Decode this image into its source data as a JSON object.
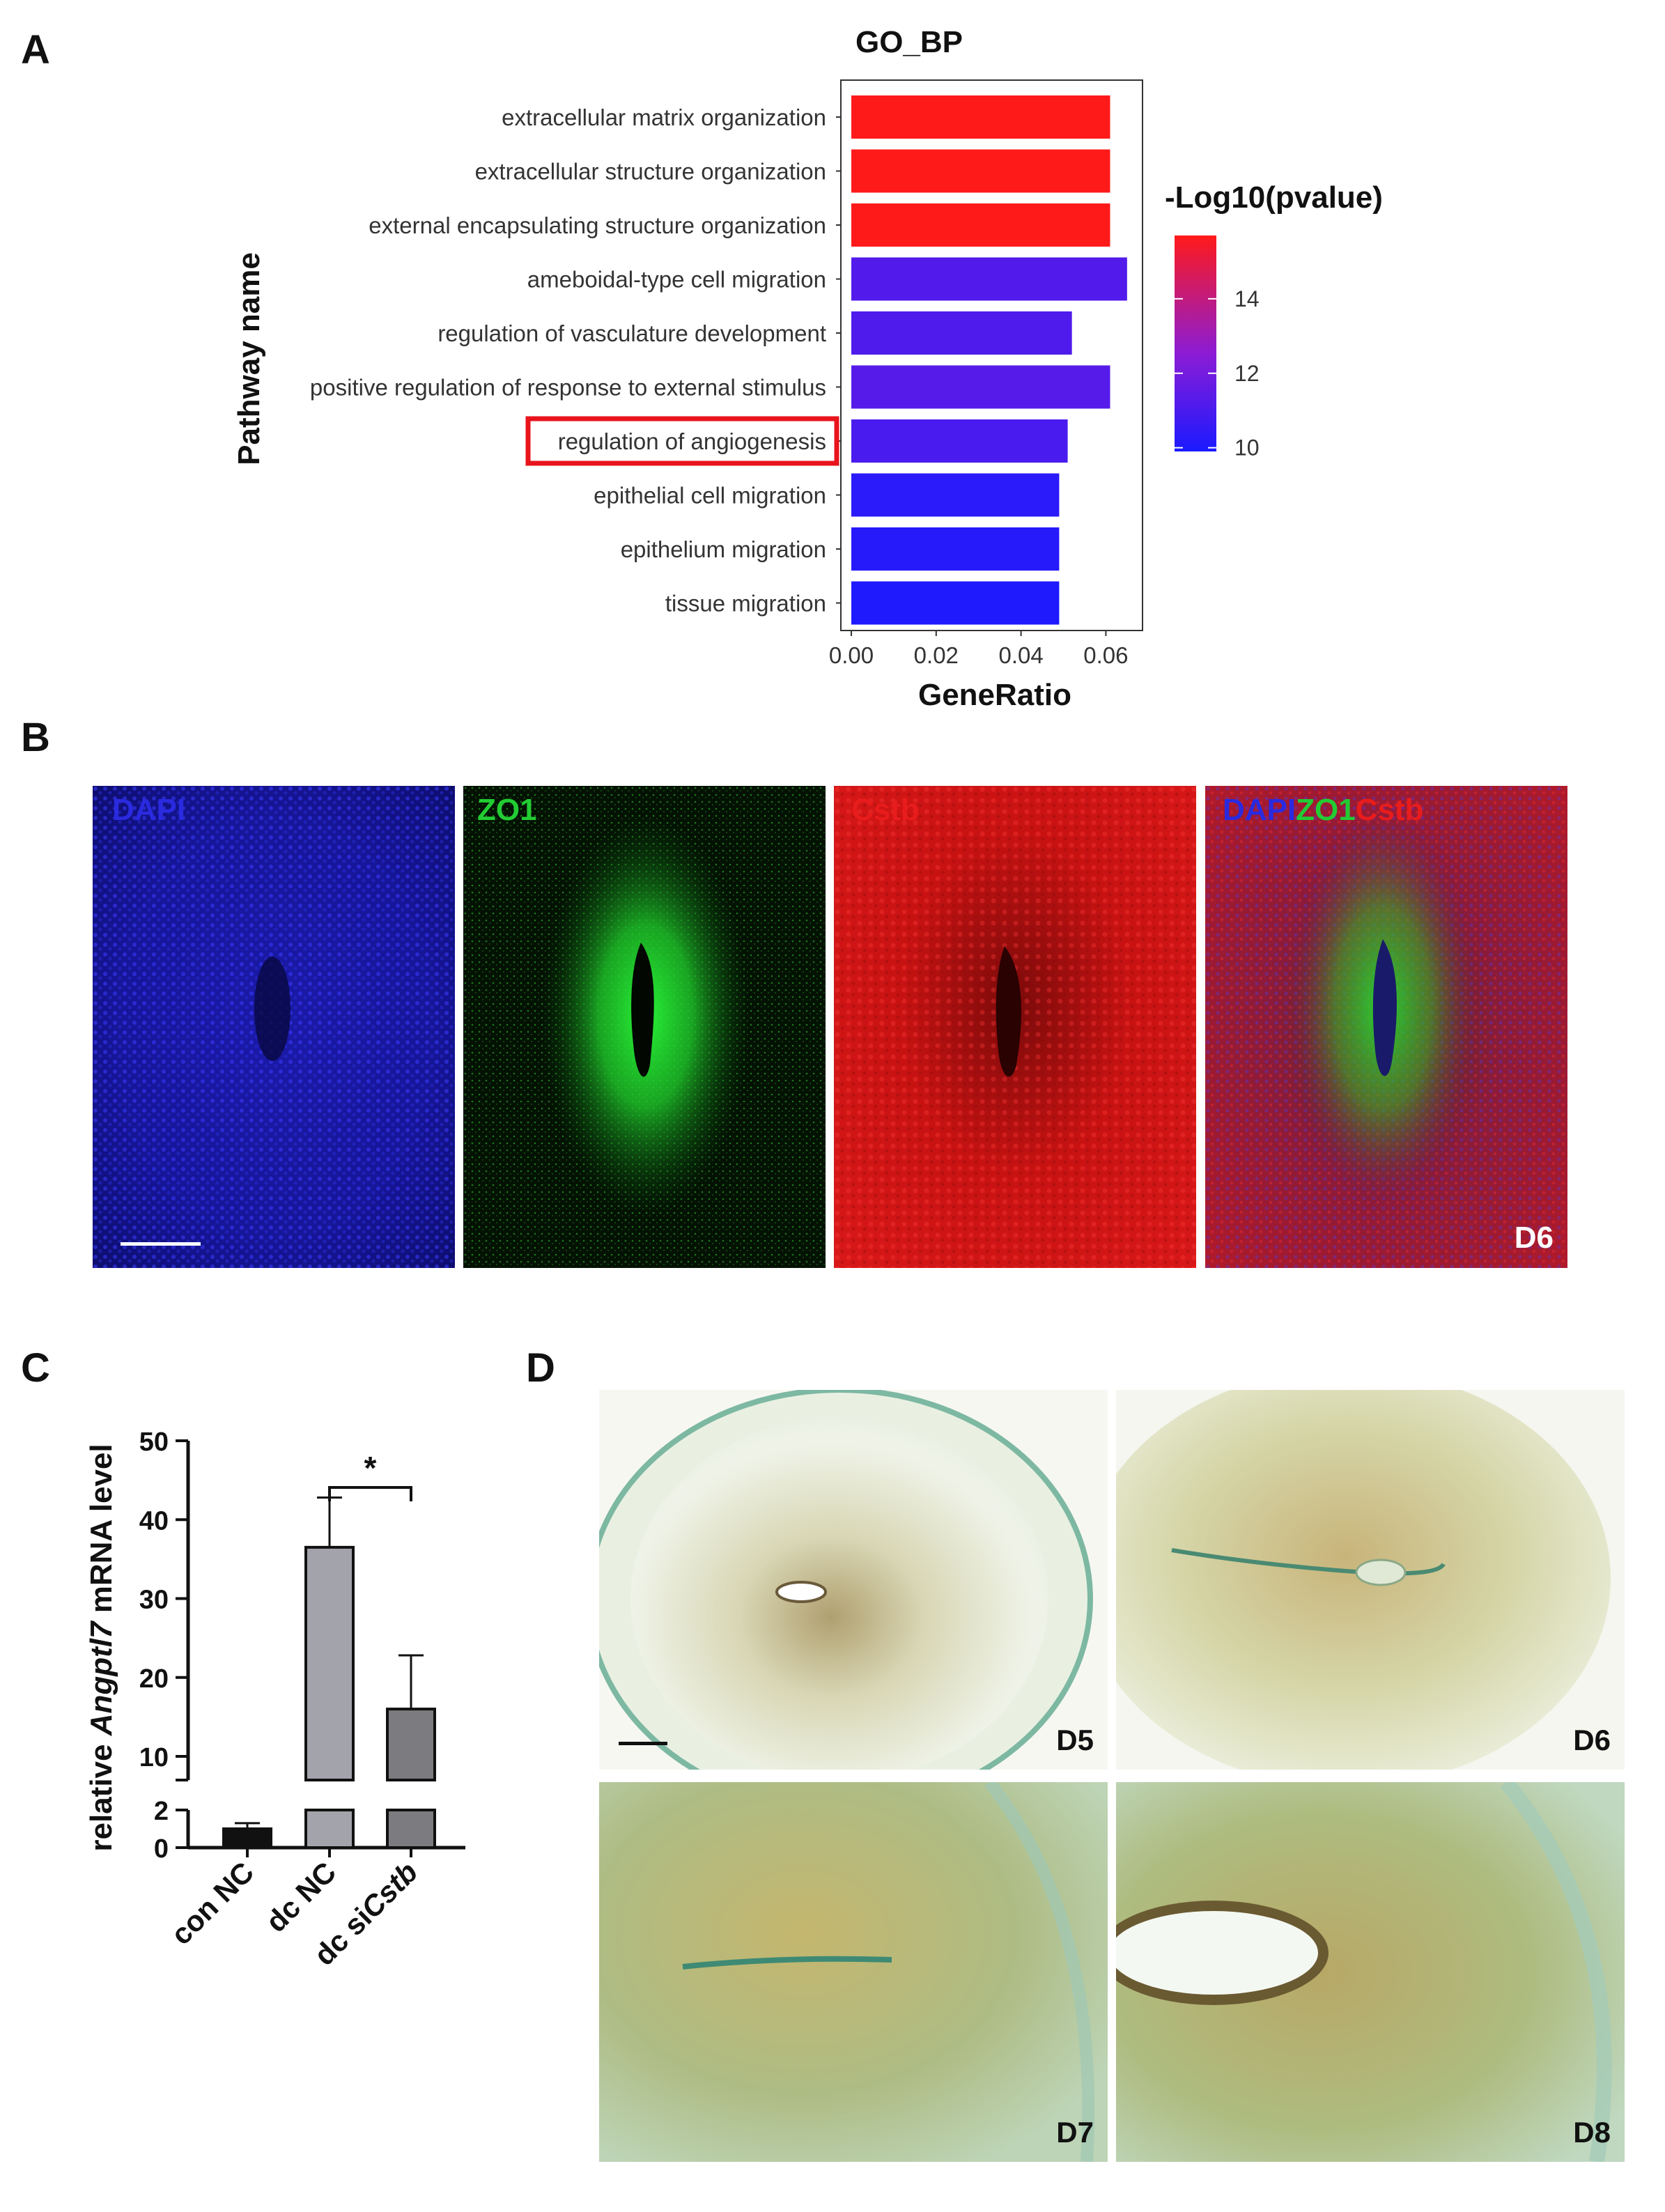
{
  "panels": {
    "a": "A",
    "b": "B",
    "c": "C",
    "d": "D"
  },
  "panel_a": {
    "chart_data": {
      "type": "bar",
      "orientation": "horizontal",
      "title": "GO_BP",
      "xlabel": "GeneRatio",
      "ylabel": "Pathway name",
      "x_ticks": [
        "0.00",
        "0.02",
        "0.04",
        "0.06"
      ],
      "xlim": [
        0,
        0.066
      ],
      "categories": [
        "extracellular matrix organization",
        "extracellular structure organization",
        "external encapsulating structure organization",
        "ameboidal-type cell migration",
        "regulation of vasculature development",
        "positive regulation of response to external stimulus",
        "regulation of angiogenesis",
        "epithelial cell migration",
        "epithelium migration",
        "tissue migration"
      ],
      "values": [
        0.061,
        0.061,
        0.061,
        0.065,
        0.052,
        0.061,
        0.051,
        0.049,
        0.049,
        0.049
      ],
      "neg_log10_pvalue": [
        15.7,
        15.7,
        15.7,
        11.2,
        11.1,
        11.3,
        11.0,
        10.3,
        10.2,
        10.0
      ],
      "highlighted_category": "regulation of angiogenesis",
      "highlight_color": "#e8141c",
      "colorbar": {
        "title": "-Log10(pvalue)",
        "ticks": [
          "14",
          "12",
          "10"
        ],
        "range": [
          9.9,
          15.7
        ],
        "low_color": "#1a1aff",
        "mid_color": "#8b1cd6",
        "high_color": "#ff1a1a"
      },
      "grid": false
    }
  },
  "panel_b": {
    "channels": [
      {
        "label": "DAPI",
        "color": "#2a2ae0"
      },
      {
        "label": "ZO1",
        "color": "#22cc33"
      },
      {
        "label": "Cstb",
        "color": "#e81c1c"
      }
    ],
    "merge_labels": [
      "DAPI",
      "ZO1",
      "Cstb"
    ],
    "day_label": "D6"
  },
  "panel_c": {
    "chart_data": {
      "type": "bar",
      "ylabel_prefix": "relative ",
      "ylabel_gene": "Angptl7",
      "ylabel_suffix": " mRNA level",
      "y_ticks_upper": [
        "50",
        "40",
        "30",
        "20",
        "10"
      ],
      "y_ticks_lower": [
        "2",
        "0"
      ],
      "broken_axis": {
        "lower": [
          0,
          2
        ],
        "upper": [
          7,
          50
        ]
      },
      "categories": [
        {
          "plain": "con NC",
          "italic": ""
        },
        {
          "plain": "dc NC",
          "italic": ""
        },
        {
          "plain": "dc si",
          "italic": "Cstb"
        }
      ],
      "values": [
        1.0,
        36.5,
        16.0
      ],
      "errors": [
        0.3,
        6.3,
        6.8
      ],
      "bar_colors": [
        "#111111",
        "#a3a3ac",
        "#7b7b80"
      ],
      "significance": {
        "between": [
          1,
          2
        ],
        "label": "*"
      }
    }
  },
  "panel_d": {
    "images": [
      {
        "label": "D5"
      },
      {
        "label": "D6"
      },
      {
        "label": "D7"
      },
      {
        "label": "D8"
      }
    ]
  }
}
